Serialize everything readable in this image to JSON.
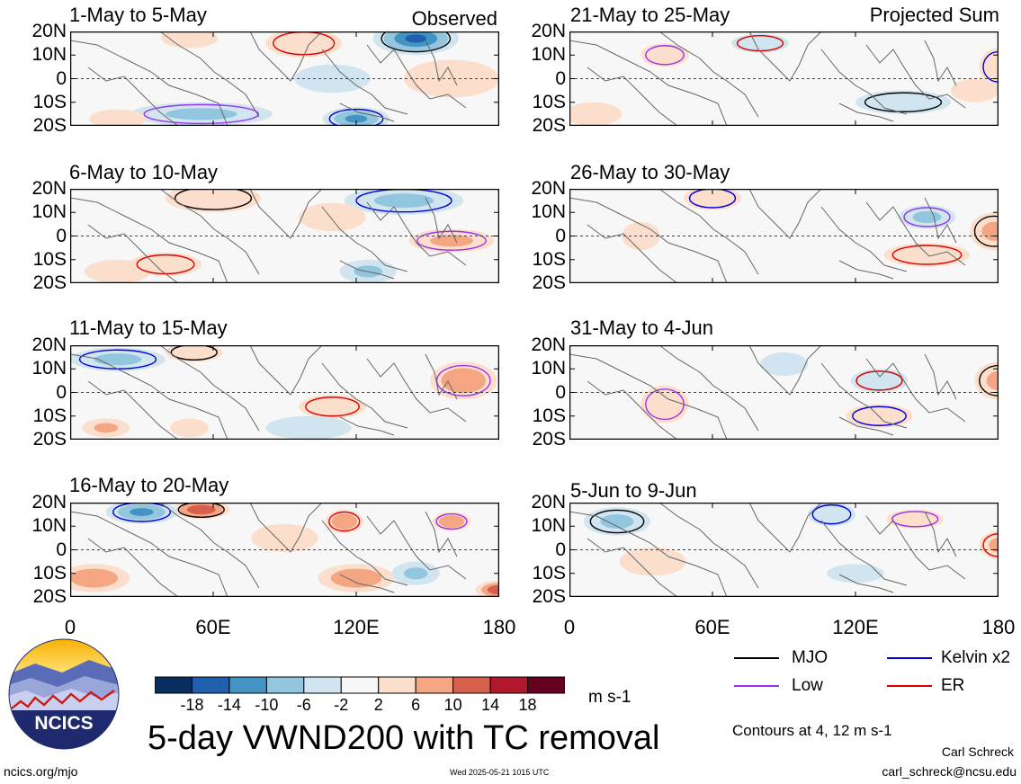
{
  "figure": {
    "title": "5-day VWND200 with TC removal",
    "units": "m s-1",
    "contours_note": "Contours at 4, 12 m s-1",
    "author": "Carl Schreck",
    "email": "carl_schreck@ncsu.edu",
    "url": "ncics.org/mjo",
    "timestamp": "Wed 2025-05-21 1015 UTC",
    "logo_text": "NCICS",
    "left_column_tag": "Observed",
    "right_column_tag": "Projected Sum"
  },
  "chart_data": {
    "type": "heatmap",
    "variable": "VWND200",
    "x_ticks": [
      "0",
      "60E",
      "120E",
      "180"
    ],
    "xlim": [
      0,
      180
    ],
    "y_ticks": [
      "20N",
      "10N",
      "0",
      "10S",
      "20S"
    ],
    "ylim": [
      -20,
      20
    ],
    "panels": [
      {
        "title": "1-May to 5-May",
        "column": "Observed",
        "blobs": [
          [
            145,
            17,
            18,
            7,
            -14
          ],
          [
            120,
            -17,
            14,
            5,
            -10
          ],
          [
            55,
            -15,
            30,
            5,
            -6
          ],
          [
            98,
            15,
            16,
            6,
            6
          ],
          [
            50,
            17,
            12,
            4,
            4
          ],
          [
            160,
            0,
            20,
            8,
            6
          ],
          [
            110,
            0,
            16,
            6,
            -3
          ],
          [
            20,
            -17,
            12,
            4,
            6
          ]
        ]
      },
      {
        "title": "6-May to 10-May",
        "column": "Observed",
        "blobs": [
          [
            60,
            16,
            20,
            6,
            6
          ],
          [
            140,
            15,
            25,
            6,
            -6
          ],
          [
            160,
            -2,
            18,
            5,
            8
          ],
          [
            40,
            -12,
            15,
            5,
            4
          ],
          [
            110,
            8,
            14,
            6,
            5
          ],
          [
            125,
            -15,
            12,
            5,
            -6
          ],
          [
            20,
            -15,
            14,
            5,
            6
          ]
        ]
      },
      {
        "title": "11-May to 15-May",
        "column": "Observed",
        "blobs": [
          [
            52,
            17,
            12,
            4,
            6
          ],
          [
            20,
            14,
            20,
            5,
            -6
          ],
          [
            165,
            5,
            14,
            8,
            10
          ],
          [
            110,
            -6,
            14,
            5,
            6
          ],
          [
            100,
            -15,
            18,
            5,
            -4
          ],
          [
            15,
            -15,
            10,
            4,
            8
          ],
          [
            50,
            -15,
            8,
            4,
            4
          ]
        ]
      },
      {
        "title": "16-May to 20-May",
        "column": "Observed",
        "blobs": [
          [
            55,
            17,
            12,
            4,
            14
          ],
          [
            30,
            16,
            15,
            5,
            -10
          ],
          [
            160,
            12,
            8,
            4,
            10
          ],
          [
            115,
            12,
            8,
            5,
            10
          ],
          [
            10,
            -12,
            15,
            6,
            10
          ],
          [
            120,
            -12,
            16,
            6,
            10
          ],
          [
            180,
            -17,
            10,
            4,
            14
          ],
          [
            145,
            -10,
            10,
            5,
            -8
          ],
          [
            90,
            5,
            14,
            6,
            4
          ]
        ]
      },
      {
        "title": "21-May to 25-May",
        "column": "Projected Sum",
        "blobs": [
          [
            140,
            -10,
            20,
            5,
            -4
          ],
          [
            180,
            5,
            8,
            8,
            6
          ],
          [
            40,
            10,
            10,
            5,
            4
          ],
          [
            80,
            15,
            12,
            4,
            -3
          ],
          [
            10,
            -15,
            12,
            5,
            6
          ],
          [
            170,
            -5,
            10,
            5,
            5
          ]
        ]
      },
      {
        "title": "26-May to 30-May",
        "column": "Projected Sum",
        "blobs": [
          [
            178,
            2,
            10,
            8,
            8
          ],
          [
            60,
            16,
            12,
            5,
            4
          ],
          [
            150,
            8,
            12,
            5,
            -6
          ],
          [
            150,
            -8,
            18,
            5,
            6
          ],
          [
            30,
            0,
            8,
            6,
            4
          ]
        ]
      },
      {
        "title": "31-May to 4-Jun",
        "column": "Projected Sum",
        "blobs": [
          [
            180,
            5,
            10,
            8,
            8
          ],
          [
            130,
            -10,
            14,
            5,
            6
          ],
          [
            40,
            -5,
            10,
            8,
            4
          ],
          [
            130,
            5,
            12,
            5,
            -4
          ],
          [
            90,
            12,
            10,
            5,
            -3
          ]
        ]
      },
      {
        "title": "5-Jun to 9-Jun",
        "column": "Projected Sum",
        "blobs": [
          [
            20,
            12,
            14,
            6,
            -6
          ],
          [
            110,
            15,
            10,
            5,
            -4
          ],
          [
            145,
            13,
            12,
            4,
            6
          ],
          [
            180,
            2,
            8,
            6,
            8
          ],
          [
            35,
            -5,
            14,
            6,
            4
          ],
          [
            120,
            -10,
            12,
            4,
            -4
          ]
        ]
      }
    ],
    "colorbar": {
      "labels": [
        "-18",
        "-14",
        "-10",
        "-6",
        "-2",
        "2",
        "6",
        "10",
        "14",
        "18"
      ],
      "colors": [
        "#0b2e60",
        "#2060ac",
        "#4393c3",
        "#92c5de",
        "#d1e5f0",
        "#f7f7f7",
        "#fbdfcc",
        "#f4a582",
        "#d6604d",
        "#b2182b",
        "#67001f"
      ]
    },
    "legend": [
      {
        "label": "MJO",
        "color": "#000000"
      },
      {
        "label": "Kelvin x2",
        "color": "#0000dd"
      },
      {
        "label": "Low",
        "color": "#9933ee"
      },
      {
        "label": "ER",
        "color": "#dd0000"
      }
    ]
  }
}
